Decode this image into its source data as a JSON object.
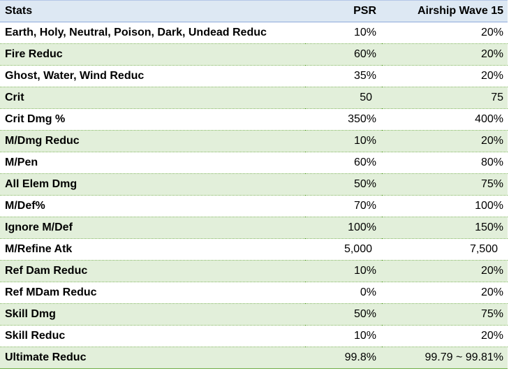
{
  "header": {
    "stat": "Stats",
    "psr": "PSR",
    "airship": "Airship Wave 15"
  },
  "rows": [
    {
      "stat": "Earth, Holy, Neutral, Poison, Dark, Undead Reduc",
      "psr": "10%",
      "airship": "20%"
    },
    {
      "stat": "Fire Reduc",
      "psr": "60%",
      "airship": "20%"
    },
    {
      "stat": "Ghost, Water, Wind Reduc",
      "psr": "35%",
      "airship": "20%"
    },
    {
      "stat": "Crit",
      "psr": "50",
      "airship": "75"
    },
    {
      "stat": "Crit Dmg %",
      "psr": "350%",
      "airship": "400%"
    },
    {
      "stat": "M/Dmg Reduc",
      "psr": "10%",
      "airship": "20%"
    },
    {
      "stat": "M/Pen",
      "psr": "60%",
      "airship": "80%"
    },
    {
      "stat": "All Elem Dmg",
      "psr": "50%",
      "airship": "75%"
    },
    {
      "stat": "M/Def%",
      "psr": "70%",
      "airship": "100%"
    },
    {
      "stat": "Ignore M/Def",
      "psr": "100%",
      "airship": "150%"
    },
    {
      "stat": "M/Refine Atk",
      "psr": "5,000",
      "airship": "7,500"
    },
    {
      "stat": "Ref Dam Reduc",
      "psr": "10%",
      "airship": "20%"
    },
    {
      "stat": "Ref MDam Reduc",
      "psr": "0%",
      "airship": "20%"
    },
    {
      "stat": "Skill Dmg",
      "psr": "50%",
      "airship": "75%"
    },
    {
      "stat": "Skill Reduc",
      "psr": "10%",
      "airship": "20%"
    },
    {
      "stat": "Ultimate Reduc",
      "psr": "99.8%",
      "airship": "99.79 ~ 99.81%"
    }
  ],
  "colors": {
    "header_bg": "#dde8f3",
    "band_bg": "#e2efda",
    "border_green": "#70ad47"
  }
}
